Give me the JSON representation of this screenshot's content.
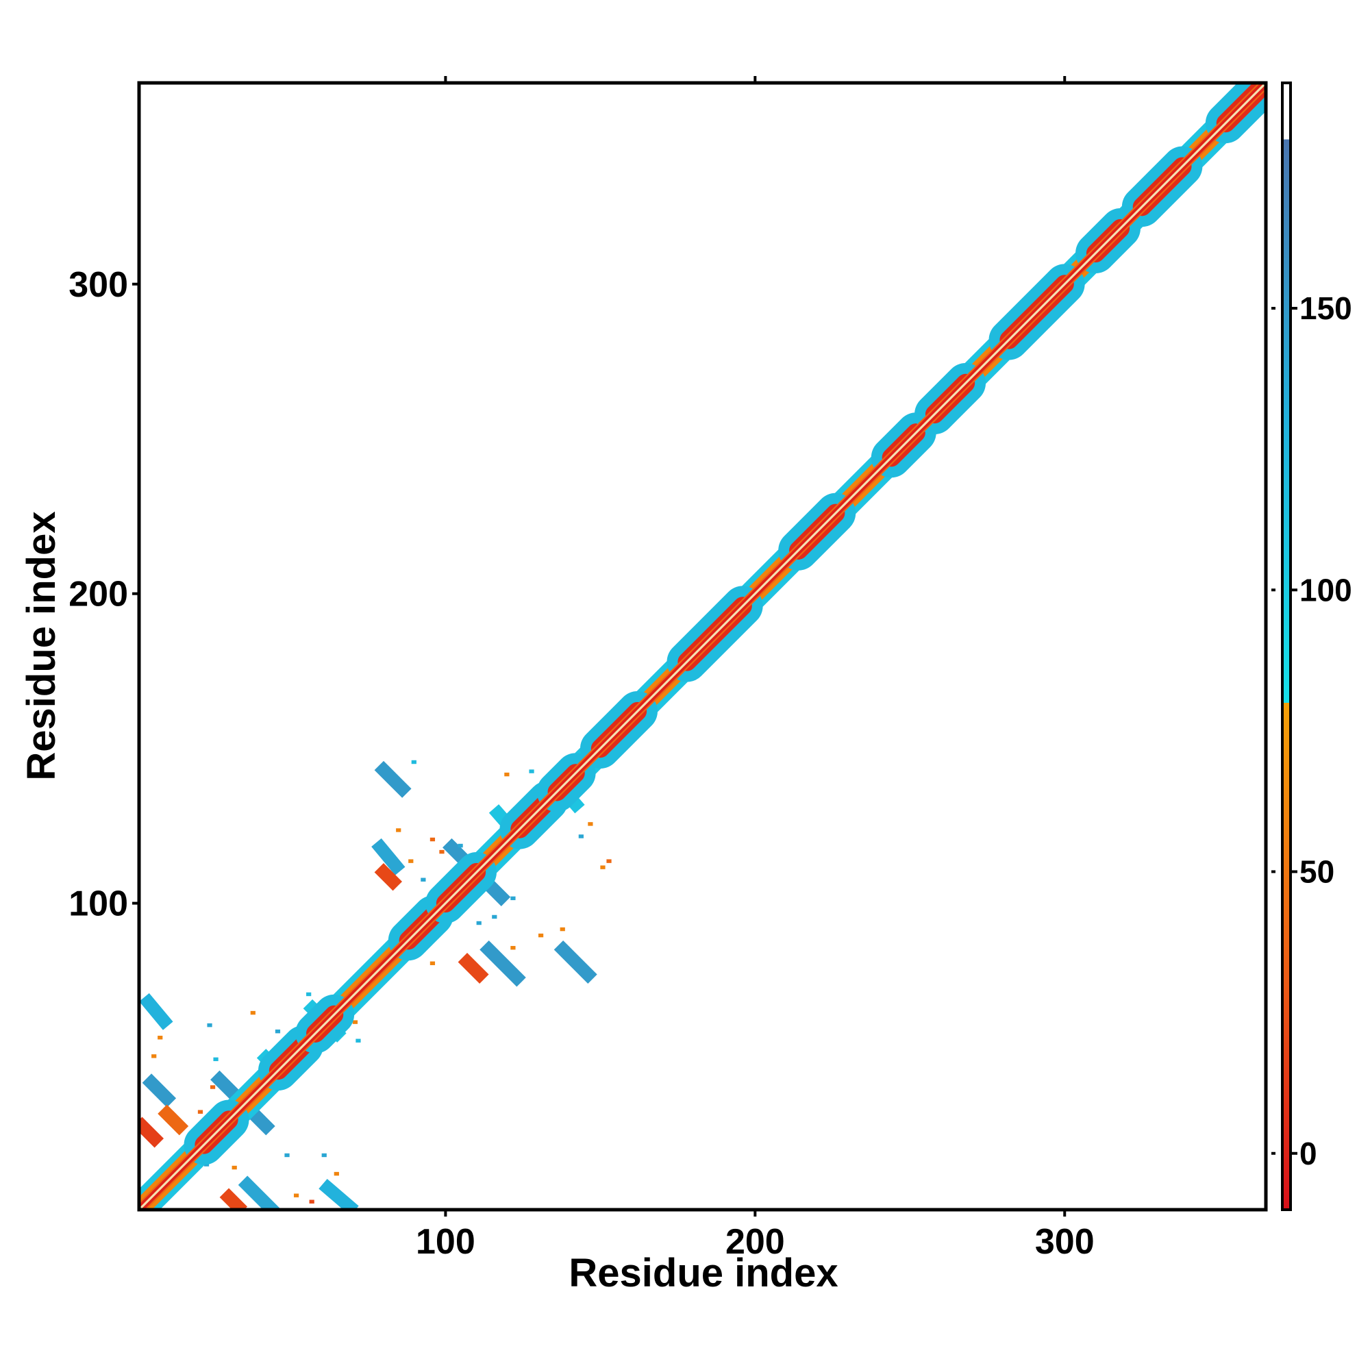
{
  "chart_data": {
    "type": "heatmap",
    "title": "",
    "xlabel": "Residue index",
    "ylabel": "Residue index",
    "xlim": [
      1,
      365
    ],
    "ylim": [
      1,
      365
    ],
    "x_ticks": [
      100,
      200,
      300
    ],
    "y_ticks": [
      100,
      200,
      300
    ],
    "x_tick_labels": [
      "100",
      "200",
      "300"
    ],
    "y_tick_labels": [
      "100",
      "200",
      "300"
    ],
    "grid": false,
    "legend": "colorbar-right",
    "colorbar": {
      "range": [
        -10,
        190
      ],
      "ticks": [
        0,
        50,
        100,
        150
      ],
      "tick_labels": [
        "0",
        "50",
        "100",
        "150"
      ],
      "bands": [
        {
          "from": -10,
          "to": 30,
          "color": "#e4281e"
        },
        {
          "from": 30,
          "to": 80,
          "color": "#f08a0e"
        },
        {
          "from": 80,
          "to": 180,
          "color": "#1ccce0"
        },
        {
          "from": 180,
          "to": 190,
          "color": "#ffffff"
        }
      ],
      "gradient": [
        {
          "value": -10,
          "color": "#d8101a"
        },
        {
          "value": 30,
          "color": "#ec5a16"
        },
        {
          "value": 80,
          "color": "#f3a008"
        },
        {
          "value": 80,
          "color": "#17e0e8"
        },
        {
          "value": 130,
          "color": "#22b2dc"
        },
        {
          "value": 180,
          "color": "#4a76b0"
        },
        {
          "value": 180,
          "color": "#ffffff"
        },
        {
          "value": 190,
          "color": "#ffffff"
        }
      ]
    },
    "colors": {
      "red": "#e4281e",
      "orange": "#f08a0e",
      "cyan": "#1ccce0",
      "steelblue": "#4a8ec6"
    },
    "diagonal": {
      "from": 1,
      "to": 365,
      "core_value": 0,
      "helix_segments": [
        [
          22,
          30
        ],
        [
          46,
          54
        ],
        [
          58,
          64
        ],
        [
          88,
          96
        ],
        [
          100,
          110
        ],
        [
          124,
          133
        ],
        [
          136,
          142
        ],
        [
          150,
          162
        ],
        [
          178,
          196
        ],
        [
          214,
          226
        ],
        [
          244,
          252
        ],
        [
          258,
          268
        ],
        [
          282,
          300
        ],
        [
          310,
          318
        ],
        [
          325,
          338
        ],
        [
          352,
          362
        ]
      ]
    },
    "contacts": [
      {
        "x1": 5,
        "y1": 42,
        "x2": 10,
        "y2": 37,
        "value": 150
      },
      {
        "x1": 4,
        "y1": 68,
        "x2": 9,
        "y2": 62,
        "value": 130
      },
      {
        "x1": 27,
        "y1": 43,
        "x2": 42,
        "y2": 28,
        "value": 150
      },
      {
        "x1": 36,
        "y1": 9,
        "x2": 44,
        "y2": 1,
        "value": 140
      },
      {
        "x1": 62,
        "y1": 8,
        "x2": 69,
        "y2": 2,
        "value": 130
      },
      {
        "x1": 80,
        "y1": 143,
        "x2": 86,
        "y2": 137,
        "value": 150
      },
      {
        "x1": 79,
        "y1": 118,
        "x2": 84,
        "y2": 112,
        "value": 140
      },
      {
        "x1": 102,
        "y1": 118,
        "x2": 118,
        "y2": 102,
        "value": 150
      },
      {
        "x1": 114,
        "y1": 85,
        "x2": 123,
        "y2": 76,
        "value": 150
      },
      {
        "x1": 138,
        "y1": 85,
        "x2": 146,
        "y2": 77,
        "value": 150
      },
      {
        "x1": 135,
        "y1": 140,
        "x2": 142,
        "y2": 132,
        "value": 110
      },
      {
        "x1": 117,
        "y1": 129,
        "x2": 124,
        "y2": 121,
        "value": 110
      },
      {
        "x1": 57,
        "y1": 66,
        "x2": 65,
        "y2": 58,
        "value": 110
      },
      {
        "x1": 42,
        "y1": 50,
        "x2": 48,
        "y2": 44,
        "value": 110
      },
      {
        "x1": 95,
        "y1": 100,
        "x2": 100,
        "y2": 95,
        "value": 110
      },
      {
        "x1": 10,
        "y1": 32,
        "x2": 14,
        "y2": 28,
        "value": 40
      },
      {
        "x1": 2,
        "y1": 28,
        "x2": 6,
        "y2": 24,
        "value": 15
      },
      {
        "x1": 30,
        "y1": 5,
        "x2": 33,
        "y2": 2,
        "value": 20
      },
      {
        "x1": 107,
        "y1": 81,
        "x2": 111,
        "y2": 77,
        "value": 20
      },
      {
        "x1": 80,
        "y1": 110,
        "x2": 83,
        "y2": 107,
        "value": 20
      }
    ],
    "specks": [
      [
        20,
        32,
        40
      ],
      [
        24,
        40,
        40
      ],
      [
        37,
        64,
        60
      ],
      [
        70,
        61,
        60
      ],
      [
        5,
        50,
        60
      ],
      [
        7,
        56,
        60
      ],
      [
        17,
        19,
        140
      ],
      [
        22,
        15,
        140
      ],
      [
        31,
        14,
        60
      ],
      [
        48,
        18,
        140
      ],
      [
        60,
        18,
        140
      ],
      [
        64,
        12,
        60
      ],
      [
        95,
        80,
        60
      ],
      [
        121,
        85,
        60
      ],
      [
        137,
        91,
        60
      ],
      [
        110,
        93,
        140
      ],
      [
        115,
        95,
        140
      ],
      [
        121,
        101,
        140
      ],
      [
        130,
        89,
        60
      ],
      [
        104,
        118,
        140
      ],
      [
        108,
        111,
        140
      ],
      [
        95,
        120,
        40
      ],
      [
        98,
        116,
        40
      ],
      [
        88,
        113,
        60
      ],
      [
        92,
        107,
        140
      ],
      [
        119,
        141,
        60
      ],
      [
        143,
        121,
        140
      ],
      [
        127,
        142,
        120
      ],
      [
        150,
        111,
        60
      ],
      [
        84,
        123,
        60
      ],
      [
        55,
        70,
        120
      ],
      [
        45,
        58,
        140
      ],
      [
        71,
        55,
        120
      ],
      [
        23,
        60,
        140
      ],
      [
        89,
        145,
        120
      ],
      [
        25,
        49,
        120
      ],
      [
        51,
        5,
        60
      ],
      [
        56,
        3,
        20
      ],
      [
        146,
        125,
        60
      ],
      [
        152,
        113,
        40
      ]
    ]
  }
}
